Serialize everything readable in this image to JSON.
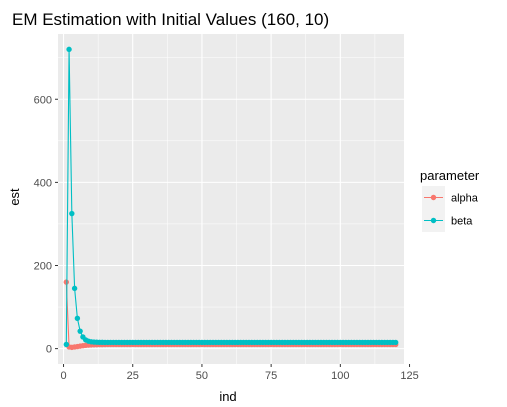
{
  "chart_data": {
    "type": "line",
    "title": "EM Estimation with Initial Values (160, 10)",
    "xlabel": "ind",
    "ylabel": "est",
    "xlim": [
      -2,
      123
    ],
    "ylim": [
      -37,
      757
    ],
    "x_ticks": [
      0,
      25,
      50,
      75,
      100,
      125
    ],
    "y_ticks": [
      0,
      200,
      400,
      600
    ],
    "x_tick_labels": [
      "0",
      "25",
      "50",
      "75",
      "100",
      "125"
    ],
    "y_tick_labels": [
      "0",
      "200",
      "400",
      "600"
    ],
    "grid": true,
    "legend": {
      "title": "parameter",
      "position": "right"
    },
    "series": [
      {
        "name": "alpha",
        "color": "#f8766d",
        "points": [
          [
            1,
            160
          ],
          [
            2,
            4
          ],
          [
            3,
            3
          ],
          [
            4,
            4
          ],
          [
            5,
            5
          ],
          [
            6,
            6
          ],
          [
            7,
            7
          ],
          [
            8,
            8
          ],
          [
            9,
            8.5
          ],
          [
            10,
            9
          ],
          [
            11,
            9.3
          ],
          [
            12,
            9.5
          ],
          [
            13,
            9.7
          ],
          [
            14,
            9.8
          ],
          [
            15,
            9.9
          ],
          [
            16,
            10
          ]
        ],
        "tail": {
          "from": 17,
          "to": 120,
          "value": 10
        }
      },
      {
        "name": "beta",
        "color": "#00bfc4",
        "points": [
          [
            1,
            10
          ],
          [
            2,
            720
          ],
          [
            3,
            325
          ],
          [
            4,
            145
          ],
          [
            5,
            73
          ],
          [
            6,
            42
          ],
          [
            7,
            28
          ],
          [
            8,
            21
          ],
          [
            9,
            18
          ],
          [
            10,
            16.5
          ],
          [
            11,
            15.8
          ],
          [
            12,
            15.4
          ],
          [
            13,
            15.2
          ],
          [
            14,
            15.1
          ],
          [
            15,
            15
          ]
        ],
        "tail": {
          "from": 16,
          "to": 120,
          "value": 15
        }
      }
    ]
  }
}
